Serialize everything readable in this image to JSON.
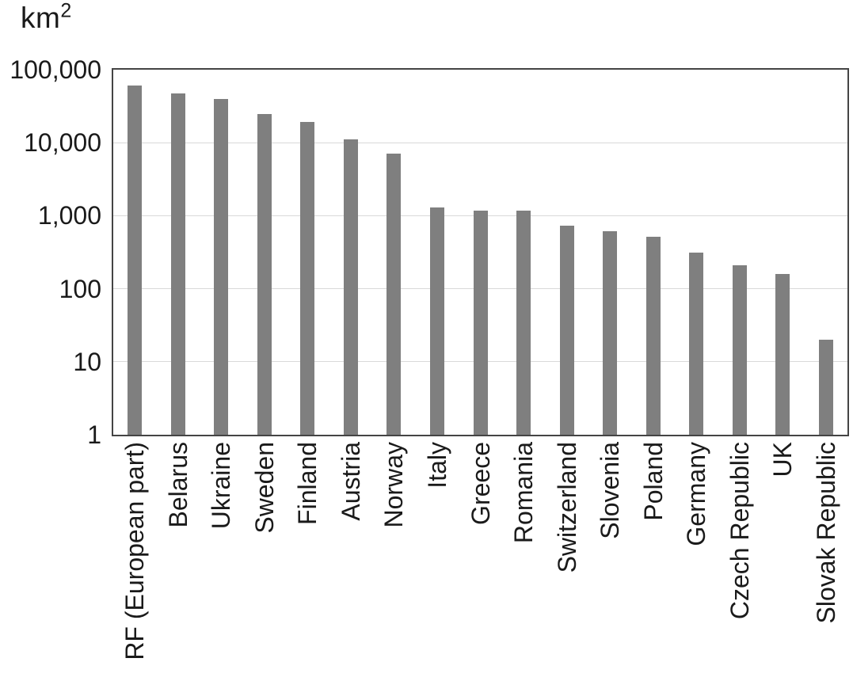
{
  "chart_data": {
    "type": "bar",
    "title": "",
    "unit_label": {
      "base": "km",
      "exponent": "2"
    },
    "ylabel": "km2",
    "xlabel": "",
    "yscale": "log",
    "ylim": [
      1,
      100000
    ],
    "yticks": [
      {
        "value": 1,
        "label": "1"
      },
      {
        "value": 10,
        "label": "10"
      },
      {
        "value": 100,
        "label": "100"
      },
      {
        "value": 1000,
        "label": "1,000"
      },
      {
        "value": 10000,
        "label": "10,000"
      },
      {
        "value": 100000,
        "label": "100,000"
      }
    ],
    "categories": [
      "RF (European part)",
      "Belarus",
      "Ukraine",
      "Sweden",
      "Finland",
      "Austria",
      "Norway",
      "Italy",
      "Greece",
      "Romania",
      "Switzerland",
      "Slovenia",
      "Poland",
      "Germany",
      "Czech Republic",
      "UK",
      "Slovak Republic"
    ],
    "values": [
      60000,
      47000,
      40000,
      24500,
      19000,
      11000,
      7000,
      1300,
      1180,
      1180,
      730,
      610,
      520,
      310,
      210,
      160,
      20
    ],
    "grid": true,
    "legend": null,
    "bar_color": "#7f7f7f",
    "grid_color": "#d9d9d9",
    "axis_color": "#444444",
    "text_color": "#1a1a1a",
    "background_color": "#ffffff"
  }
}
